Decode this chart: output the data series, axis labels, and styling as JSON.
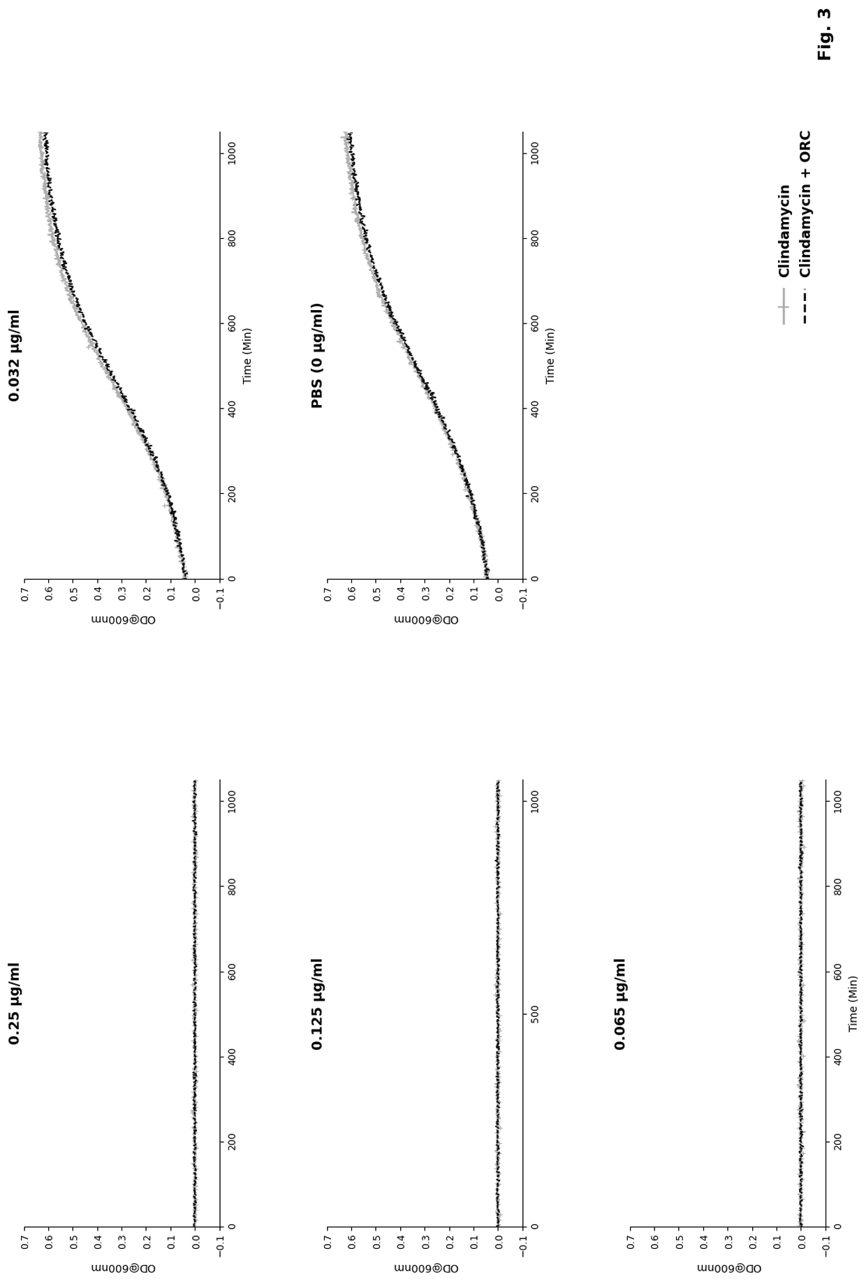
{
  "subplots": [
    {
      "title": "0.25 μg/ml",
      "growth": false,
      "xticks": [
        0,
        200,
        400,
        600,
        800,
        1000
      ]
    },
    {
      "title": "0.125 μg/ml",
      "growth": false,
      "xticks": [
        0,
        500,
        1000
      ]
    },
    {
      "title": "0.065 μg/ml",
      "growth": false,
      "xticks": [
        0,
        200,
        400,
        600,
        800,
        1000
      ]
    },
    {
      "title": "0.032 μg/ml",
      "growth": true,
      "xticks": [
        0,
        200,
        400,
        600,
        800,
        1000
      ]
    },
    {
      "title": "PBS (0 μg/ml)",
      "growth": true,
      "xticks": [
        0,
        200,
        400,
        600,
        800,
        1000
      ]
    }
  ],
  "ylim": [
    -0.1,
    0.7
  ],
  "yticks": [
    -0.1,
    0.0,
    0.1,
    0.2,
    0.3,
    0.4,
    0.5,
    0.6,
    0.7
  ],
  "xlim": [
    0,
    1050
  ],
  "ylabel": "OD@600nm",
  "xlabel": "Time (Min)",
  "legend_solid_label": "Clindamycin",
  "legend_dashed_label": "Clindamycin + ORC",
  "fig_label": "Fig. 3",
  "solid_color": "#b0b0b0",
  "dashed_color": "#111111",
  "marker_size": 4,
  "line_width": 1.2,
  "growth_L": 0.65,
  "growth_k": 0.006,
  "growth_t0": 450,
  "growth_L2": 0.63,
  "growth_k2": 0.006,
  "growth_t0_2": 455,
  "growth_L_pbs": 0.65,
  "growth_k_pbs": 0.0055,
  "growth_t0_pbs": 480
}
